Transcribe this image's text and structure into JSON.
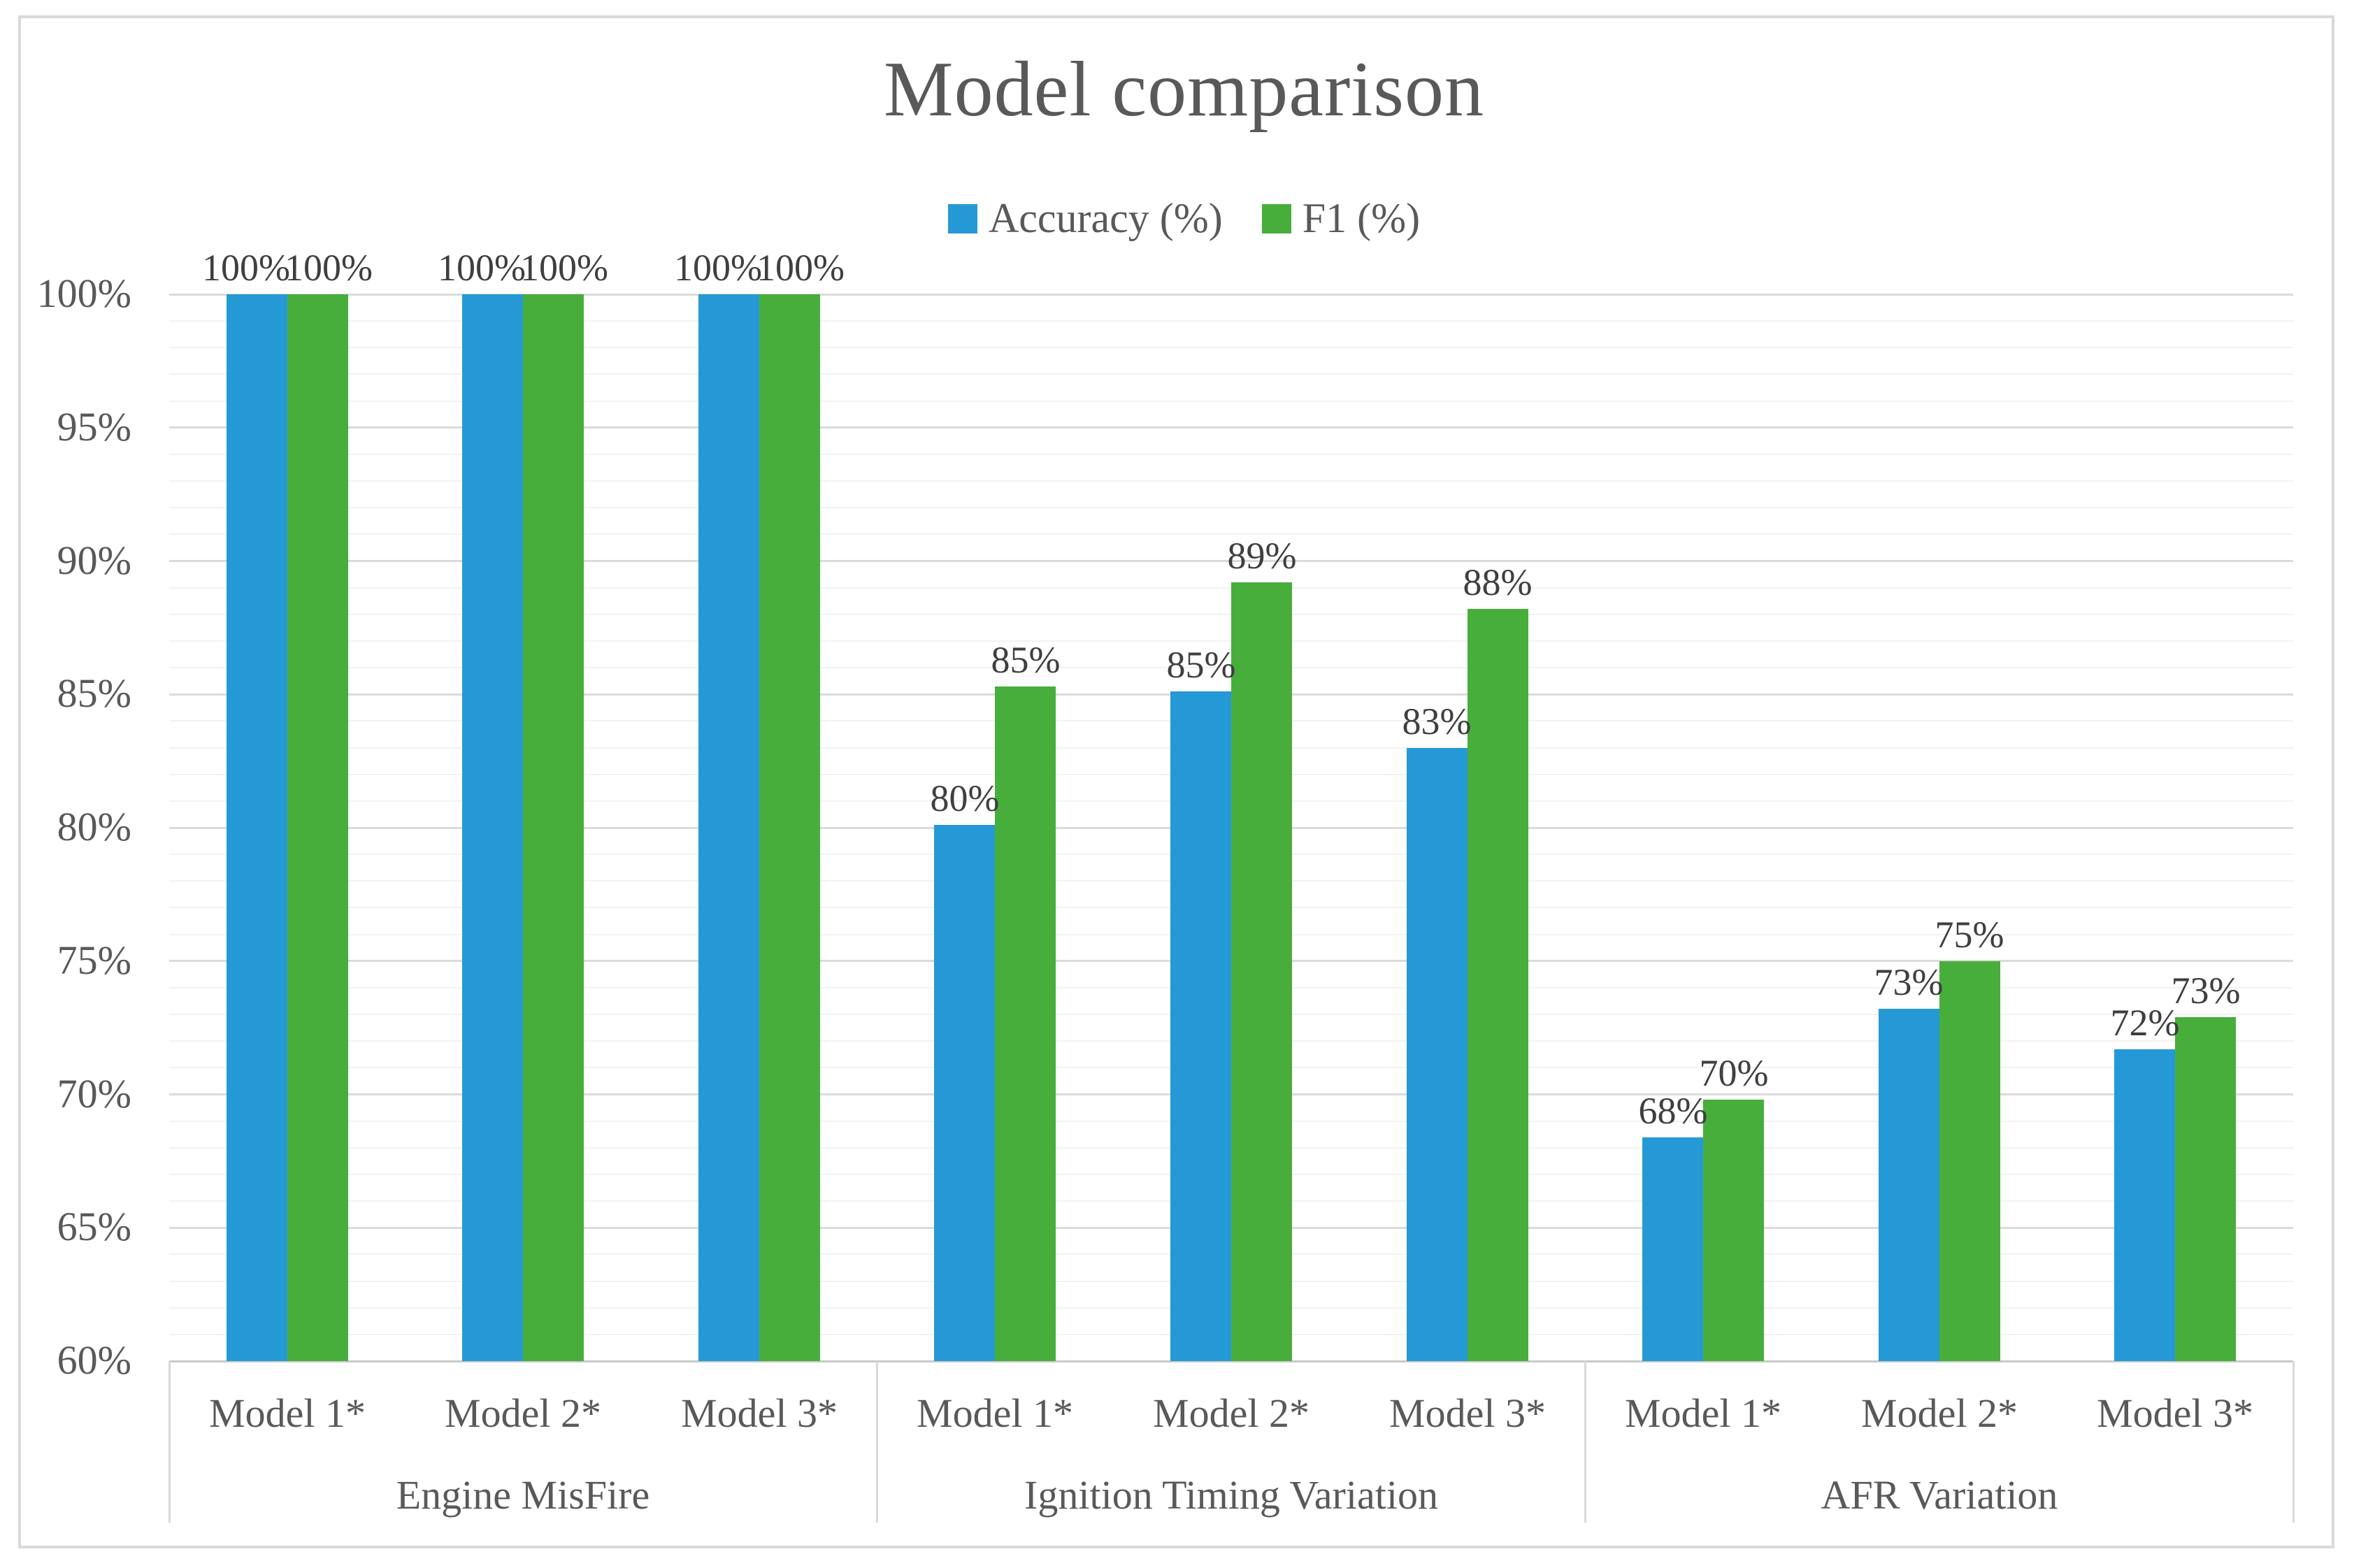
{
  "figure": {
    "title": "Model comparison",
    "colors": {
      "accuracy": "#2599D5",
      "f1": "#47AE3C",
      "title_text": "#595959",
      "axis_text": "#595959",
      "data_label_text": "#3F3F3F",
      "grid_minor": "#F2F2F2",
      "grid_major": "#DBDBDB",
      "axis_line": "#C9C9C9",
      "border": "#D9D9D9"
    }
  },
  "legend": [
    {
      "label": "Accuracy (%)",
      "series": "accuracy"
    },
    {
      "label": "F1 (%)",
      "series": "f1"
    }
  ],
  "chart_data": {
    "type": "bar",
    "title": "Model comparison",
    "legend_position": "top",
    "grid": "horizontal; minor every 1%, major every 5%",
    "y_axis": {
      "min": 60,
      "max": 100,
      "major_step": 5,
      "minor_step": 1,
      "unit": "%",
      "tick_labels": [
        "60%",
        "65%",
        "70%",
        "75%",
        "80%",
        "85%",
        "90%",
        "95%",
        "100%"
      ]
    },
    "series": [
      {
        "name": "Accuracy (%)",
        "color": "#2599D5"
      },
      {
        "name": "F1 (%)",
        "color": "#47AE3C"
      }
    ],
    "groups": [
      {
        "label": "Engine MisFire",
        "categories": [
          "Model 1*",
          "Model 2*",
          "Model 3*"
        ],
        "accuracy": [
          100,
          100,
          100
        ],
        "f1": [
          100,
          100,
          100
        ],
        "accuracy_labels": [
          "100%",
          "100%",
          "100%"
        ],
        "f1_labels": [
          "100%",
          "100%",
          "100%"
        ]
      },
      {
        "label": "Ignition Timing Variation",
        "categories": [
          "Model 1*",
          "Model 2*",
          "Model 3*"
        ],
        "accuracy": [
          80.1,
          85.1,
          83.0
        ],
        "f1": [
          85.3,
          89.2,
          88.2
        ],
        "accuracy_labels": [
          "80%",
          "85%",
          "83%"
        ],
        "f1_labels": [
          "85%",
          "89%",
          "88%"
        ]
      },
      {
        "label": "AFR Variation",
        "categories": [
          "Model 1*",
          "Model 2*",
          "Model 3*"
        ],
        "accuracy": [
          68.4,
          73.2,
          71.7
        ],
        "f1": [
          69.8,
          75.0,
          72.9
        ],
        "accuracy_labels": [
          "68%",
          "73%",
          "72%"
        ],
        "f1_labels": [
          "70%",
          "75%",
          "73%"
        ]
      }
    ]
  }
}
